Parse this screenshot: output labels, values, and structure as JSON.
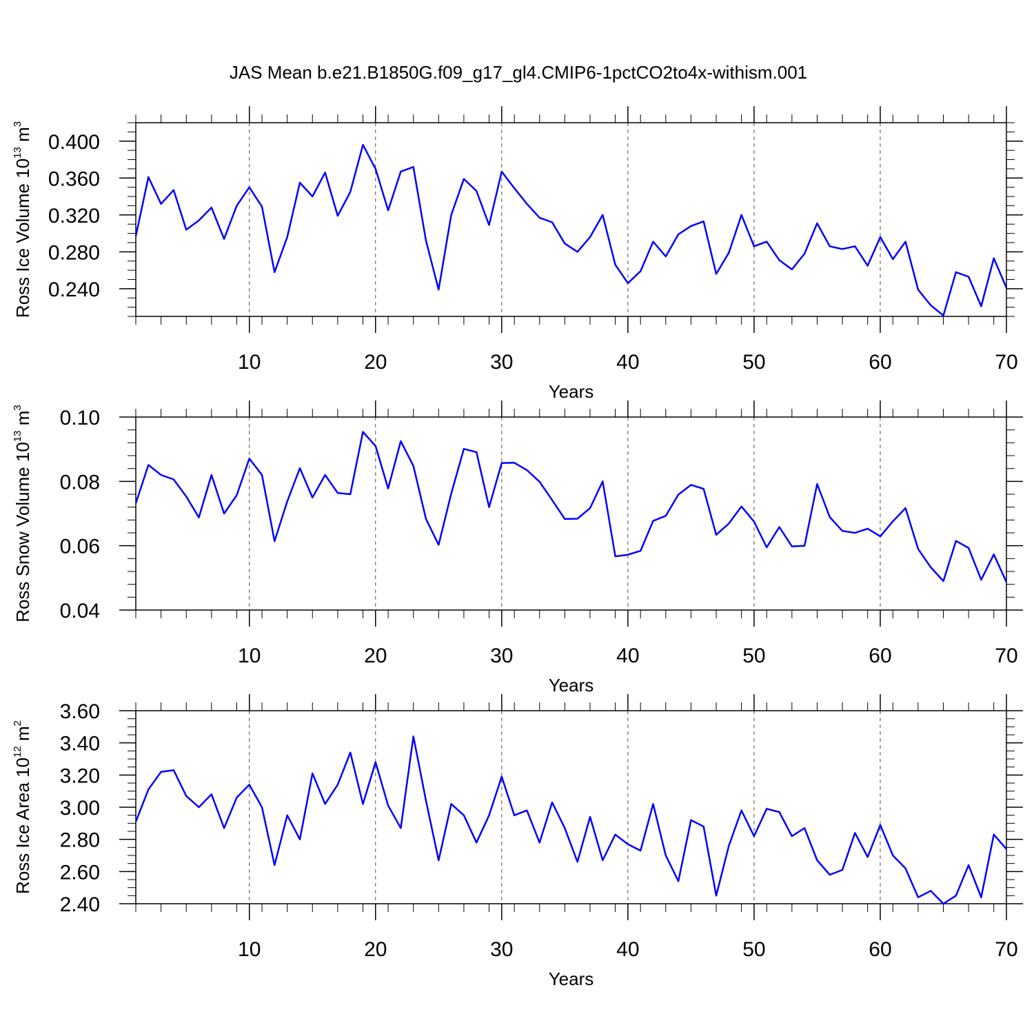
{
  "title": "JAS Mean b.e21.B1850G.f09_g17_gl4.CMIP6-1pctCO2to4x-withism.001",
  "colors": {
    "line": "#0000ff",
    "axis": "#000000",
    "grid": "#000000"
  },
  "chart_data": [
    {
      "type": "line",
      "xlabel": "Years",
      "ylabel": {
        "text": "Ross Ice Volume 10",
        "exp": "13",
        "unit": " m",
        "unit_exp": "3"
      },
      "xlim": [
        1,
        70
      ],
      "ylim": [
        0.21,
        0.42
      ],
      "xticks": [
        10,
        20,
        30,
        40,
        50,
        60,
        70
      ],
      "xtick_labels": [
        "10",
        "20",
        "30",
        "40",
        "50",
        "60",
        "70"
      ],
      "yticks": [
        0.24,
        0.28,
        0.32,
        0.36,
        0.4
      ],
      "ytick_labels": [
        "0.240",
        "0.280",
        "0.320",
        "0.360",
        "0.400"
      ],
      "ytick_minor_step": 0.01,
      "grid": "vertical dashed at major x ticks",
      "series": [
        {
          "values": [
            0.297,
            0.361,
            0.332,
            0.347,
            0.304,
            0.314,
            0.328,
            0.294,
            0.33,
            0.35,
            0.329,
            0.258,
            0.296,
            0.355,
            0.34,
            0.366,
            0.319,
            0.345,
            0.396,
            0.37,
            0.325,
            0.367,
            0.372,
            0.292,
            0.239,
            0.32,
            0.359,
            0.346,
            0.309,
            0.367,
            0.349,
            0.332,
            0.317,
            0.312,
            0.289,
            0.28,
            0.296,
            0.32,
            0.266,
            0.246,
            0.259,
            0.291,
            0.275,
            0.299,
            0.308,
            0.313,
            0.256,
            0.279,
            0.32,
            0.286,
            0.291,
            0.271,
            0.261,
            0.278,
            0.311,
            0.286,
            0.283,
            0.286,
            0.265,
            0.296,
            0.272,
            0.291,
            0.239,
            0.222,
            0.211,
            0.258,
            0.253,
            0.221,
            0.273,
            0.241
          ]
        }
      ]
    },
    {
      "type": "line",
      "xlabel": "Years",
      "ylabel": {
        "text": "Ross Snow Volume 10",
        "exp": "13",
        "unit": " m",
        "unit_exp": "3"
      },
      "xlim": [
        1,
        70
      ],
      "ylim": [
        0.04,
        0.1
      ],
      "xticks": [
        10,
        20,
        30,
        40,
        50,
        60,
        70
      ],
      "xtick_labels": [
        "10",
        "20",
        "30",
        "40",
        "50",
        "60",
        "70"
      ],
      "yticks": [
        0.04,
        0.06,
        0.08,
        0.1
      ],
      "ytick_labels": [
        "0.04",
        "0.06",
        "0.08",
        "0.10"
      ],
      "ytick_minor_step": 0.004,
      "grid": "vertical dashed at major x ticks",
      "series": [
        {
          "values": [
            0.0732,
            0.0851,
            0.082,
            0.0806,
            0.0753,
            0.0688,
            0.082,
            0.07,
            0.0757,
            0.0871,
            0.082,
            0.0614,
            0.0738,
            0.0841,
            0.075,
            0.082,
            0.0764,
            0.076,
            0.0954,
            0.091,
            0.0778,
            0.0925,
            0.0848,
            0.0683,
            0.0603,
            0.0762,
            0.0901,
            0.0891,
            0.072,
            0.0857,
            0.0858,
            0.0835,
            0.0799,
            0.0742,
            0.0683,
            0.0684,
            0.0717,
            0.08,
            0.0567,
            0.0572,
            0.0584,
            0.0677,
            0.0693,
            0.0759,
            0.0789,
            0.0777,
            0.0634,
            0.0669,
            0.0722,
            0.0675,
            0.0595,
            0.0658,
            0.0598,
            0.06,
            0.0792,
            0.0689,
            0.0646,
            0.064,
            0.0653,
            0.0629,
            0.0676,
            0.0717,
            0.059,
            0.0533,
            0.049,
            0.0615,
            0.0593,
            0.0494,
            0.0573,
            0.0487
          ]
        }
      ]
    },
    {
      "type": "line",
      "xlabel": "Years",
      "ylabel": {
        "text": "Ross Ice Area 10",
        "exp": "12",
        "unit": " m",
        "unit_exp": "2"
      },
      "xlim": [
        1,
        70
      ],
      "ylim": [
        2.4,
        3.6
      ],
      "xticks": [
        10,
        20,
        30,
        40,
        50,
        60,
        70
      ],
      "xtick_labels": [
        "10",
        "20",
        "30",
        "40",
        "50",
        "60",
        "70"
      ],
      "yticks": [
        2.4,
        2.6,
        2.8,
        3.0,
        3.2,
        3.4,
        3.6
      ],
      "ytick_labels": [
        "2.40",
        "2.60",
        "2.80",
        "3.00",
        "3.20",
        "3.40",
        "3.60"
      ],
      "ytick_minor_step": 0.05,
      "grid": "vertical dashed at major x ticks",
      "series": [
        {
          "values": [
            2.91,
            3.11,
            3.22,
            3.23,
            3.07,
            3.0,
            3.08,
            2.87,
            3.06,
            3.14,
            3.0,
            2.64,
            2.95,
            2.8,
            3.21,
            3.02,
            3.14,
            3.34,
            3.02,
            3.28,
            3.01,
            2.87,
            3.44,
            3.04,
            2.67,
            3.02,
            2.95,
            2.78,
            2.95,
            3.19,
            2.95,
            2.98,
            2.78,
            3.03,
            2.87,
            2.66,
            2.94,
            2.67,
            2.83,
            2.77,
            2.73,
            3.02,
            2.7,
            2.54,
            2.92,
            2.88,
            2.45,
            2.76,
            2.98,
            2.82,
            2.99,
            2.97,
            2.82,
            2.87,
            2.67,
            2.58,
            2.61,
            2.84,
            2.69,
            2.89,
            2.7,
            2.62,
            2.44,
            2.48,
            2.4,
            2.45,
            2.64,
            2.44,
            2.83,
            2.74
          ]
        }
      ]
    }
  ]
}
